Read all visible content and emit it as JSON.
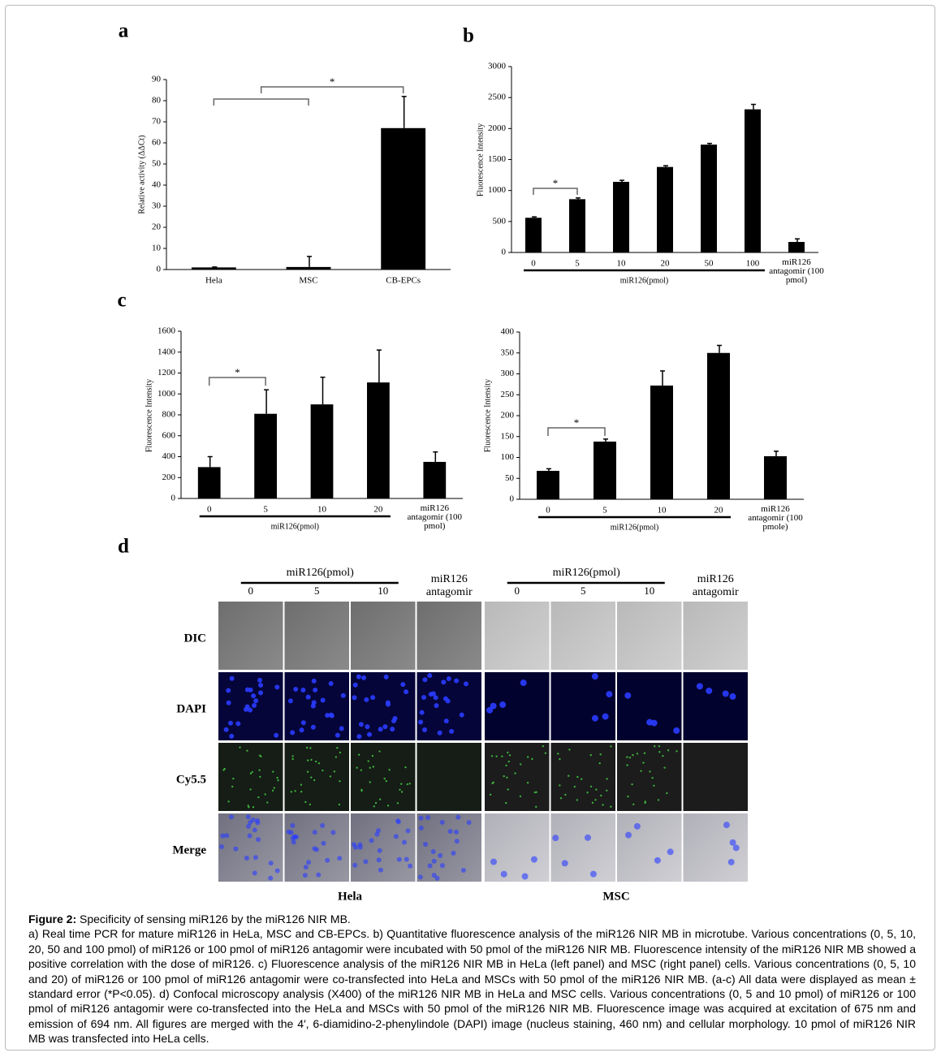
{
  "panel_labels": [
    "a",
    "b",
    "c",
    "d"
  ],
  "chart_data": [
    {
      "type": "bar",
      "ylabel": "Relative activity (ΔΔCt)",
      "categories": [
        "Hela",
        "MSC",
        "CB-EPCs"
      ],
      "values": [
        1,
        1.2,
        67
      ],
      "errors": [
        0.2,
        5,
        15
      ],
      "color": "#000000",
      "ylim": [
        0,
        90
      ],
      "yticks": [
        0,
        10,
        20,
        30,
        40,
        50,
        60,
        70,
        80,
        90
      ],
      "annotations": [
        "*"
      ]
    },
    {
      "type": "bar",
      "ylabel": "Fluorescence Intensity",
      "categories": [
        "0",
        "5",
        "10",
        "20",
        "50",
        "100",
        "miR126 antagomir (100 pmol)"
      ],
      "values": [
        560,
        860,
        1140,
        1380,
        1740,
        2310,
        170
      ],
      "errors": [
        15,
        20,
        25,
        20,
        20,
        80,
        50
      ],
      "color": "#000000",
      "ylim": [
        0,
        3000
      ],
      "yticks": [
        0,
        500,
        1000,
        1500,
        2000,
        2500,
        3000
      ],
      "annotations": [
        "*"
      ],
      "group_label": "miR126(pmol)"
    },
    {
      "type": "bar",
      "ylabel": "Fluorescence Intensity",
      "categories": [
        "0",
        "5",
        "10",
        "20",
        "miR126 antagomir (100 pmol)"
      ],
      "values": [
        300,
        810,
        900,
        1110,
        350
      ],
      "errors": [
        100,
        230,
        260,
        310,
        95
      ],
      "color": "#000000",
      "ylim": [
        0,
        1600
      ],
      "yticks": [
        0,
        200,
        400,
        600,
        800,
        1000,
        1200,
        1400,
        1600
      ],
      "annotations": [
        "*"
      ],
      "group_label": "miR126(pmol)"
    },
    {
      "type": "bar",
      "ylabel": "Fluorescence Intensity",
      "categories": [
        "0",
        "5",
        "10",
        "20",
        "miR126 antagomir (100 pmole)"
      ],
      "values": [
        68,
        138,
        272,
        350,
        103
      ],
      "errors": [
        5,
        6,
        35,
        18,
        12
      ],
      "color": "#000000",
      "ylim": [
        0,
        400
      ],
      "yticks": [
        0,
        50,
        100,
        150,
        200,
        250,
        300,
        350,
        400
      ],
      "annotations": [
        "*"
      ],
      "group_label": "miR126(pmol)"
    }
  ],
  "microscopy": {
    "groups": [
      {
        "name": "Hela",
        "header": "miR126(pmol)",
        "columns": [
          "0",
          "5",
          "10",
          "miR126 antagomir"
        ]
      },
      {
        "name": "MSC",
        "header": "miR126(pmol)",
        "columns": [
          "0",
          "5",
          "10",
          "miR126 antagomir"
        ]
      }
    ],
    "rows": [
      "DIC",
      "DAPI",
      "Cy5.5",
      "Merge"
    ]
  },
  "caption": {
    "label": "Figure 2:",
    "title": "Specificity of sensing miR126 by the miR126 NIR MB.",
    "text": "a) Real time PCR for mature miR126 in HeLa, MSC and CB-EPCs. b) Quantitative fluorescence analysis of the miR126 NIR MB in microtube. Various concentrations (0, 5, 10, 20, 50 and 100 pmol) of miR126 or 100 pmol of miR126 antagomir were incubated with 50 pmol of the miR126 NIR MB. Fluorescence intensity of the miR126 NIR MB showed a positive correlation with the dose of miR126. c) Fluorescence analysis of the miR126 NIR MB in HeLa (left panel) and MSC (right panel) cells. Various concentrations (0, 5, 10 and 20) of miR126 or 100 pmol of miR126 antagomir were co-transfected into HeLa and MSCs with 50 pmol of the miR126 NIR MB. (a-c) All data were displayed as mean ± standard error (*P<0.05). d) Confocal microscopy analysis (X400) of the miR126 NIR MB in HeLa and MSC cells. Various concentrations (0, 5 and 10 pmol) of miR126 or 100 pmol of miR126 antagomir were co-transfected into the HeLa and MSCs with 50 pmol of the miR126 NIR MB. Fluorescence image was acquired at excitation of 675 nm and emission of 694 nm. All figures are merged with the 4′, 6-diamidino-2-phenylindole (DAPI) image (nucleus staining, 460 nm) and cellular morphology. 10 pmol of miR126 NIR MB was transfected into HeLa cells."
  }
}
